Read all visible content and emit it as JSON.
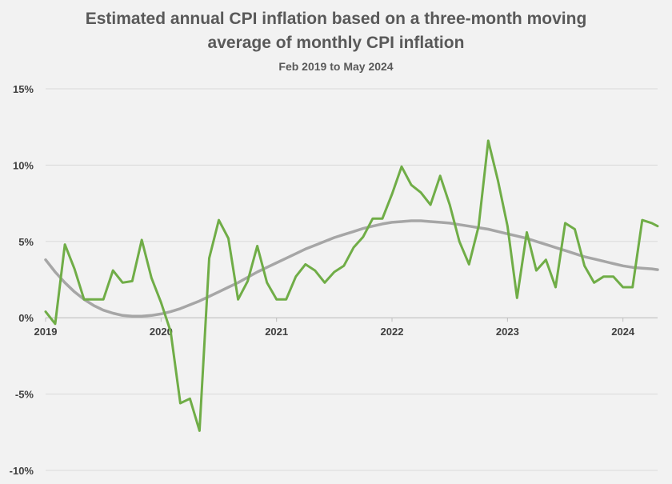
{
  "chart_data": {
    "type": "line",
    "title": "Estimated annual CPI inflation based on a three-month moving average of monthly CPI inflation",
    "title_line1": "Estimated annual CPI inflation based on a three-month moving",
    "title_line2": "average of monthly CPI inflation",
    "subtitle": "Feb 2019 to May 2024",
    "xlabel": "",
    "ylabel": "",
    "ylim": [
      -10,
      15
    ],
    "y_ticks": [
      "15%",
      "10%",
      "5%",
      "0%",
      "-5%",
      "-10%"
    ],
    "y_tick_values": [
      15,
      10,
      5,
      0,
      -5,
      -10
    ],
    "x_ticks": [
      "2019",
      "2020",
      "2021",
      "2022",
      "2023",
      "2024"
    ],
    "x_tick_values": [
      2019,
      2020,
      2021,
      2022,
      2023,
      2024
    ],
    "xlim": [
      2019,
      2024.3
    ],
    "grid": true,
    "series": [
      {
        "color": "#70ad47",
        "x": [
          2019.0,
          2019.083,
          2019.167,
          2019.25,
          2019.333,
          2019.417,
          2019.5,
          2019.583,
          2019.667,
          2019.75,
          2019.833,
          2019.917,
          2020.0,
          2020.083,
          2020.167,
          2020.25,
          2020.333,
          2020.417,
          2020.5,
          2020.583,
          2020.667,
          2020.75,
          2020.833,
          2020.917,
          2021.0,
          2021.083,
          2021.167,
          2021.25,
          2021.333,
          2021.417,
          2021.5,
          2021.583,
          2021.667,
          2021.75,
          2021.833,
          2021.917,
          2022.0,
          2022.083,
          2022.167,
          2022.25,
          2022.333,
          2022.417,
          2022.5,
          2022.583,
          2022.667,
          2022.75,
          2022.833,
          2022.917,
          2023.0,
          2023.083,
          2023.167,
          2023.25,
          2023.333,
          2023.417,
          2023.5,
          2023.583,
          2023.667,
          2023.75,
          2023.833,
          2023.917,
          2024.0,
          2024.083,
          2024.167,
          2024.25,
          2024.3
        ],
        "y": [
          0.4,
          -0.4,
          4.8,
          3.2,
          1.2,
          1.2,
          1.2,
          3.1,
          2.3,
          2.4,
          5.1,
          2.6,
          1.0,
          -0.9,
          -5.6,
          -5.3,
          -7.4,
          3.9,
          6.4,
          5.2,
          1.2,
          2.4,
          4.7,
          2.3,
          1.2,
          1.2,
          2.7,
          3.5,
          3.1,
          2.3,
          3.0,
          3.4,
          4.6,
          5.3,
          6.5,
          6.5,
          8.1,
          9.9,
          8.7,
          8.2,
          7.4,
          9.3,
          7.4,
          5.0,
          3.5,
          6.0,
          11.6,
          9.0,
          6.0,
          1.3,
          5.6,
          3.1,
          3.8,
          2.0,
          6.2,
          5.8,
          3.4,
          2.3,
          2.7,
          2.7,
          2.0,
          2.0,
          6.4,
          6.2,
          6.0
        ]
      },
      {
        "color": "#a6a6a6",
        "x": [
          2019.0,
          2019.083,
          2019.167,
          2019.25,
          2019.333,
          2019.417,
          2019.5,
          2019.583,
          2019.667,
          2019.75,
          2019.833,
          2019.917,
          2020.0,
          2020.083,
          2020.167,
          2020.25,
          2020.333,
          2020.417,
          2020.5,
          2020.583,
          2020.667,
          2020.75,
          2020.833,
          2020.917,
          2021.0,
          2021.083,
          2021.167,
          2021.25,
          2021.333,
          2021.417,
          2021.5,
          2021.583,
          2021.667,
          2021.75,
          2021.833,
          2021.917,
          2022.0,
          2022.083,
          2022.167,
          2022.25,
          2022.333,
          2022.417,
          2022.5,
          2022.583,
          2022.667,
          2022.75,
          2022.833,
          2022.917,
          2023.0,
          2023.083,
          2023.167,
          2023.25,
          2023.333,
          2023.417,
          2023.5,
          2023.583,
          2023.667,
          2023.75,
          2023.833,
          2023.917,
          2024.0,
          2024.083,
          2024.167,
          2024.25,
          2024.3
        ],
        "y": [
          3.8,
          3.0,
          2.3,
          1.7,
          1.2,
          0.8,
          0.5,
          0.3,
          0.15,
          0.1,
          0.1,
          0.15,
          0.25,
          0.4,
          0.6,
          0.85,
          1.1,
          1.4,
          1.7,
          2.0,
          2.3,
          2.65,
          3.0,
          3.3,
          3.6,
          3.9,
          4.2,
          4.5,
          4.75,
          5.0,
          5.25,
          5.45,
          5.65,
          5.85,
          6.0,
          6.15,
          6.25,
          6.3,
          6.35,
          6.35,
          6.3,
          6.25,
          6.2,
          6.1,
          6.0,
          5.9,
          5.8,
          5.65,
          5.5,
          5.35,
          5.2,
          5.0,
          4.8,
          4.6,
          4.4,
          4.2,
          4.0,
          3.85,
          3.7,
          3.55,
          3.4,
          3.3,
          3.25,
          3.2,
          3.15
        ]
      }
    ]
  }
}
